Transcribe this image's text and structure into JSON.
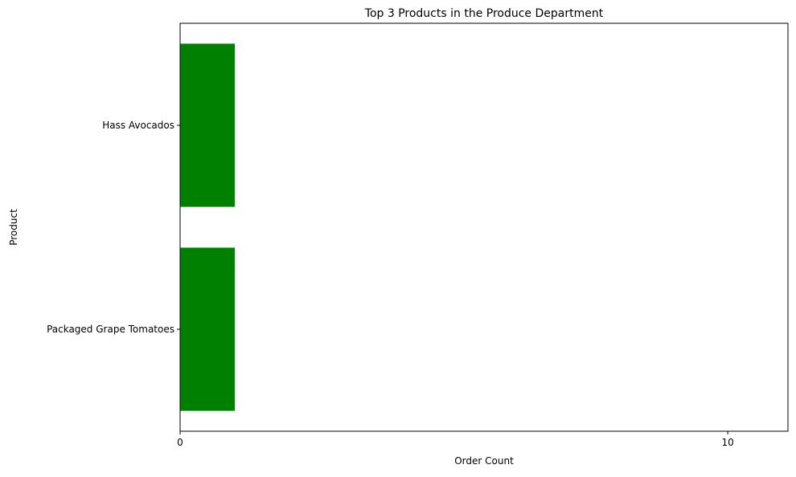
{
  "chart_data": {
    "type": "bar",
    "orientation": "horizontal",
    "title": "Top 3 Products in the Produce Department",
    "xlabel": "Order Count",
    "ylabel": "Product",
    "categories": [
      "Hass Avocados",
      "Packaged Grape Tomatoes"
    ],
    "values": [
      1,
      1
    ],
    "xlim": [
      0,
      11.1
    ],
    "xticks": [
      0,
      10
    ],
    "xtick_labels": [
      "0",
      "10"
    ],
    "grid": false,
    "legend": "none",
    "bar_color": "#008000"
  }
}
